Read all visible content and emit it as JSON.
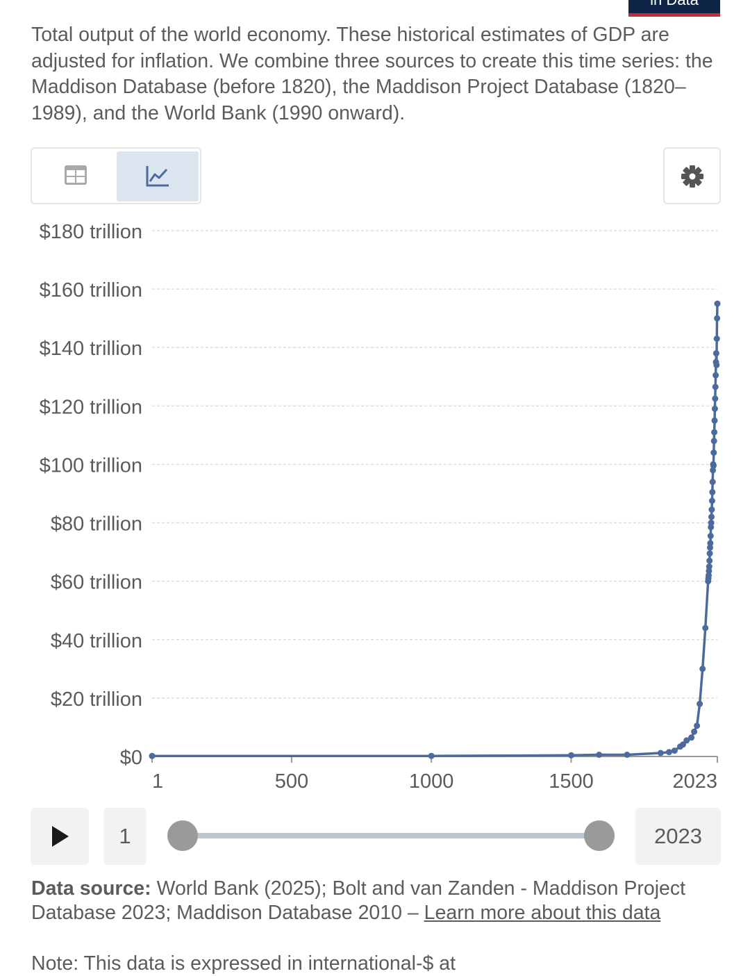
{
  "header": {
    "logo_text": "in Data"
  },
  "subtitle": "Total output of the world economy. These historical estimates of GDP are adjusted for inflation. We combine three sources to create this time series: the Maddison Database (before 1820), the Maddison Project Database (1820–1989), and the World Bank (1990 onward).",
  "view_tabs": [
    {
      "name": "table",
      "icon": "table-icon",
      "active": false
    },
    {
      "name": "chart",
      "icon": "line-chart-icon",
      "active": true
    }
  ],
  "settings_icon": "gear-icon",
  "colors": {
    "series_line": "#4c6a9c",
    "grid": "#dddddd",
    "active_tab": "#dbe5f0",
    "text": "#5b5b5b"
  },
  "chart_data": {
    "type": "line",
    "title": "",
    "xlabel": "",
    "ylabel": "",
    "xlim": [
      1,
      2023
    ],
    "ylim": [
      0,
      180
    ],
    "y_unit": "trillion",
    "y_ticks": [
      {
        "value": 0,
        "label": "$0"
      },
      {
        "value": 20,
        "label": "$20 trillion"
      },
      {
        "value": 40,
        "label": "$40 trillion"
      },
      {
        "value": 60,
        "label": "$60 trillion"
      },
      {
        "value": 80,
        "label": "$80 trillion"
      },
      {
        "value": 100,
        "label": "$100 trillion"
      },
      {
        "value": 120,
        "label": "$120 trillion"
      },
      {
        "value": 140,
        "label": "$140 trillion"
      },
      {
        "value": 160,
        "label": "$160 trillion"
      },
      {
        "value": 180,
        "label": "$180 trillion"
      }
    ],
    "x_ticks": [
      {
        "value": 1,
        "label": "1"
      },
      {
        "value": 500,
        "label": "500"
      },
      {
        "value": 1000,
        "label": "1000"
      },
      {
        "value": 1500,
        "label": "1500"
      },
      {
        "value": 2023,
        "label": "2023"
      }
    ],
    "grid": true,
    "series": [
      {
        "points": [
          [
            1,
            0.2
          ],
          [
            1000,
            0.2
          ],
          [
            1500,
            0.4
          ],
          [
            1600,
            0.6
          ],
          [
            1700,
            0.6
          ],
          [
            1820,
            1.2
          ],
          [
            1850,
            1.5
          ],
          [
            1870,
            2
          ],
          [
            1890,
            3.4
          ],
          [
            1900,
            4.1
          ],
          [
            1913,
            5.5
          ],
          [
            1930,
            6.5
          ],
          [
            1940,
            8.5
          ],
          [
            1950,
            10.5
          ],
          [
            1960,
            18
          ],
          [
            1970,
            30
          ],
          [
            1980,
            44
          ],
          [
            1990,
            60
          ],
          [
            1991,
            61
          ],
          [
            1992,
            62
          ],
          [
            1993,
            63.5
          ],
          [
            1994,
            65
          ],
          [
            1995,
            67
          ],
          [
            1996,
            69.5
          ],
          [
            1997,
            71.5
          ],
          [
            1998,
            73
          ],
          [
            1999,
            75.5
          ],
          [
            2000,
            78.5
          ],
          [
            2001,
            80
          ],
          [
            2002,
            82
          ],
          [
            2003,
            84.5
          ],
          [
            2004,
            87.5
          ],
          [
            2005,
            90.5
          ],
          [
            2006,
            94
          ],
          [
            2007,
            98
          ],
          [
            2008,
            100
          ],
          [
            2009,
            99.5
          ],
          [
            2010,
            104
          ],
          [
            2011,
            108
          ],
          [
            2012,
            111
          ],
          [
            2013,
            115
          ],
          [
            2014,
            119
          ],
          [
            2015,
            122.5
          ],
          [
            2016,
            126.5
          ],
          [
            2017,
            130.5
          ],
          [
            2018,
            135
          ],
          [
            2019,
            138
          ],
          [
            2020,
            134
          ],
          [
            2021,
            143
          ],
          [
            2022,
            150
          ],
          [
            2023,
            155
          ]
        ]
      }
    ]
  },
  "timeline": {
    "play_icon": "play-icon",
    "start_label": "1",
    "end_label": "2023",
    "start_fraction": 0,
    "end_fraction": 1
  },
  "source": {
    "label": "Data source:",
    "text": " World Bank (2025); Bolt and van Zanden - Maddison Project Database 2023; Maddison Database 2010 – ",
    "link": "Learn more about this data"
  },
  "note": "Note: This data is expressed in international-$ at"
}
